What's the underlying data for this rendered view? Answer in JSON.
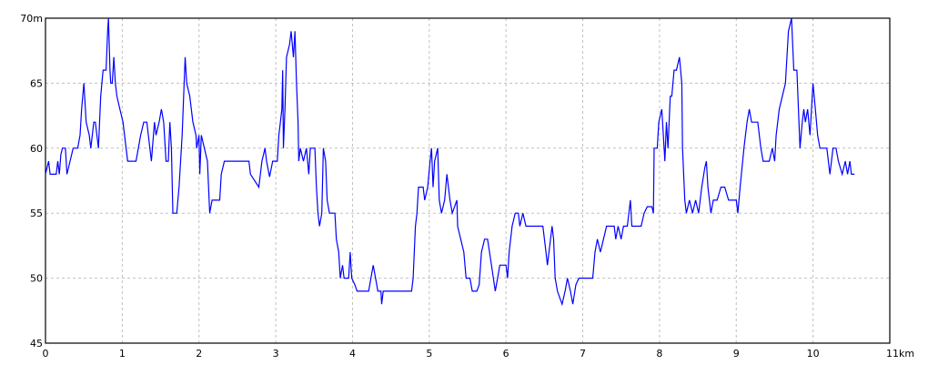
{
  "chart_data": {
    "type": "line",
    "title": "",
    "xlabel": "",
    "ylabel": "",
    "xlim": [
      0,
      11
    ],
    "ylim": [
      45,
      70
    ],
    "x_ticks": [
      "0",
      "1",
      "2",
      "3",
      "4",
      "5",
      "6",
      "7",
      "8",
      "9",
      "10",
      "11km"
    ],
    "y_ticks": [
      "70m",
      "65",
      "60",
      "55",
      "50",
      "45"
    ],
    "grid": true,
    "line_color": "#0000ff",
    "grid_color": "#c0c0c0",
    "series": [
      {
        "x": [
          0,
          0.04,
          0.06,
          0.14,
          0.16,
          0.18,
          0.2,
          0.22,
          0.26,
          0.28,
          0.32,
          0.36,
          0.42,
          0.45,
          0.47,
          0.5,
          0.53,
          0.57,
          0.59,
          0.63,
          0.65,
          0.69,
          0.72,
          0.75,
          0.79,
          0.81,
          0.82,
          0.84,
          0.85,
          0.87,
          0.89,
          0.91,
          0.93,
          0.97,
          1.01,
          1.03,
          1.07,
          1.18,
          1.24,
          1.28,
          1.32,
          1.38,
          1.42,
          1.44,
          1.48,
          1.51,
          1.54,
          1.57,
          1.6,
          1.62,
          1.64,
          1.66,
          1.71,
          1.74,
          1.78,
          1.82,
          1.84,
          1.88,
          1.92,
          1.96,
          1.97,
          2.0,
          2.01,
          2.03,
          2.07,
          2.11,
          2.14,
          2.17,
          2.27,
          2.29,
          2.33,
          2.41,
          2.65,
          2.67,
          2.78,
          2.82,
          2.86,
          2.88,
          2.92,
          2.96,
          3.02,
          3.04,
          3.06,
          3.08,
          3.09,
          3.1,
          3.12,
          3.14,
          3.18,
          3.2,
          3.23,
          3.25,
          3.27,
          3.29,
          3.3,
          3.32,
          3.36,
          3.4,
          3.43,
          3.45,
          3.51,
          3.53,
          3.55,
          3.57,
          3.6,
          3.62,
          3.65,
          3.67,
          3.7,
          3.77,
          3.79,
          3.82,
          3.84,
          3.87,
          3.89,
          3.95,
          3.97,
          3.99,
          4.03,
          4.06,
          4.21,
          4.24,
          4.27,
          4.3,
          4.33,
          4.37,
          4.38,
          4.4,
          4.77,
          4.79,
          4.82,
          4.84,
          4.86,
          4.92,
          4.94,
          4.98,
          5.01,
          5.03,
          5.05,
          5.07,
          5.11,
          5.13,
          5.16,
          5.2,
          5.23,
          5.25,
          5.27,
          5.3,
          5.36,
          5.37,
          5.41,
          5.45,
          5.48,
          5.53,
          5.56,
          5.62,
          5.65,
          5.68,
          5.72,
          5.76,
          5.81,
          5.86,
          5.92,
          6.0,
          6.02,
          6.04,
          6.08,
          6.12,
          6.16,
          6.18,
          6.22,
          6.26,
          6.48,
          6.52,
          6.54,
          6.58,
          6.6,
          6.62,
          6.64,
          6.67,
          6.73,
          6.77,
          6.8,
          6.84,
          6.87,
          6.91,
          6.95,
          7.13,
          7.16,
          7.19,
          7.23,
          7.27,
          7.31,
          7.35,
          7.41,
          7.43,
          7.46,
          7.5,
          7.53,
          7.58,
          7.6,
          7.62,
          7.64,
          7.68,
          7.76,
          7.8,
          7.84,
          7.9,
          7.92,
          7.93,
          7.97,
          7.99,
          8.03,
          8.05,
          8.07,
          8.09,
          8.11,
          8.14,
          8.16,
          8.19,
          8.22,
          8.26,
          8.29,
          8.3,
          8.33,
          8.35,
          8.39,
          8.43,
          8.47,
          8.51,
          8.55,
          8.59,
          8.61,
          8.63,
          8.67,
          8.7,
          8.75,
          8.8,
          8.85,
          8.9,
          9.0,
          9.02,
          9.05,
          9.1,
          9.14,
          9.17,
          9.2,
          9.28,
          9.32,
          9.35,
          9.43,
          9.47,
          9.5,
          9.52,
          9.56,
          9.6,
          9.64,
          9.68,
          9.72,
          9.75,
          9.79,
          9.81,
          9.83,
          9.86,
          9.88,
          9.9,
          9.93,
          9.96,
          10.0,
          10.03,
          10.06,
          10.09,
          10.18,
          10.22,
          10.26,
          10.3,
          10.33,
          10.38,
          10.42,
          10.45,
          10.48,
          10.5,
          10.54
        ],
        "y": [
          58,
          59,
          58,
          58,
          59,
          58,
          59.5,
          60,
          60,
          58,
          59,
          60,
          60,
          61,
          63,
          65,
          62,
          61,
          60,
          62,
          62,
          60,
          64,
          66,
          66,
          69,
          70,
          66,
          65,
          65,
          67,
          65,
          64,
          63,
          62,
          61,
          59,
          59,
          61,
          62,
          62,
          59,
          62,
          61,
          62,
          63,
          62,
          59,
          59,
          62,
          60,
          55,
          55,
          57,
          61,
          67,
          65,
          64,
          62,
          61,
          60,
          61,
          58,
          61,
          60,
          59,
          55,
          56,
          56,
          58,
          59,
          59,
          59,
          58,
          57,
          59,
          60,
          59,
          57.8,
          59,
          59,
          61,
          62,
          63,
          66,
          60,
          63,
          67,
          68,
          69,
          67,
          69,
          65,
          62,
          59,
          60,
          59,
          60,
          58,
          60,
          60,
          57,
          55,
          54,
          55,
          60,
          59,
          56,
          55,
          55,
          53,
          52,
          50,
          51,
          50,
          50,
          52,
          50,
          49.5,
          49,
          49,
          50,
          51,
          50,
          49,
          49,
          48,
          49,
          49,
          50,
          54,
          55,
          57,
          57,
          56,
          57,
          59,
          60,
          57,
          59,
          60,
          56,
          55,
          56,
          58,
          57,
          56,
          55,
          56,
          54,
          53,
          52,
          50,
          50,
          49,
          49,
          49.5,
          52,
          53,
          53,
          51,
          49,
          51,
          51,
          50,
          52,
          54,
          55,
          55,
          54,
          55,
          54,
          54,
          52,
          51,
          53,
          54,
          53,
          50,
          49,
          48,
          49,
          50,
          49,
          48,
          49.5,
          50,
          50,
          52,
          53,
          52,
          53,
          54,
          54,
          54,
          53,
          54,
          53,
          54,
          54,
          55,
          56,
          54,
          54,
          54,
          55,
          55.5,
          55.5,
          55,
          60,
          60,
          62,
          63,
          61,
          59,
          62,
          60,
          64,
          64,
          66,
          66,
          67,
          65,
          60,
          56,
          55,
          56,
          55,
          56,
          55,
          57,
          58.5,
          59,
          57,
          55,
          56,
          56,
          57,
          57,
          56,
          56,
          55,
          57,
          60,
          62,
          63,
          62,
          62,
          60,
          59,
          59,
          60,
          59,
          61,
          63,
          64,
          65,
          69,
          70,
          66,
          66,
          63,
          60,
          62,
          63,
          62,
          63,
          61,
          65,
          63,
          61,
          60,
          60,
          58,
          60,
          60,
          59,
          58,
          59,
          58,
          59,
          58,
          58
        ]
      }
    ]
  }
}
